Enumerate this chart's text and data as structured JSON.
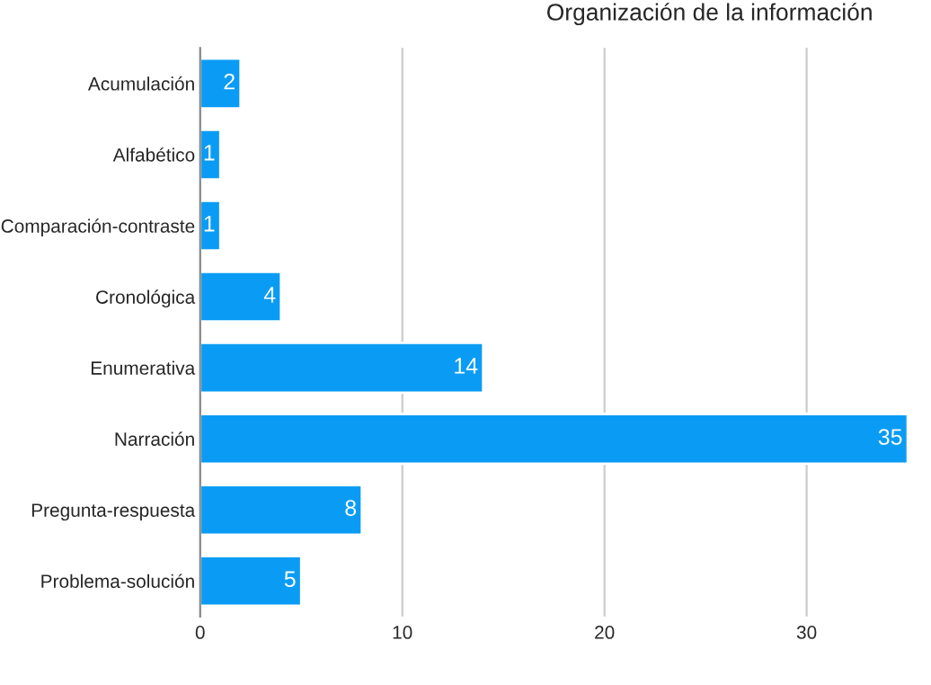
{
  "chart_data": {
    "type": "bar",
    "orientation": "horizontal",
    "title": "Organización de la información",
    "categories": [
      "Acumulación",
      "Alfabético",
      "Comparación-contraste",
      "Cronológica",
      "Enumerativa",
      "Narración",
      "Pregunta-respuesta",
      "Problema-solución"
    ],
    "values": [
      2,
      1,
      1,
      4,
      14,
      35,
      8,
      5
    ],
    "color": "#0a9cf5",
    "xlim": [
      0,
      35
    ],
    "xticks": [
      0,
      10,
      20,
      30
    ],
    "grid": "x",
    "data_labels": true
  }
}
